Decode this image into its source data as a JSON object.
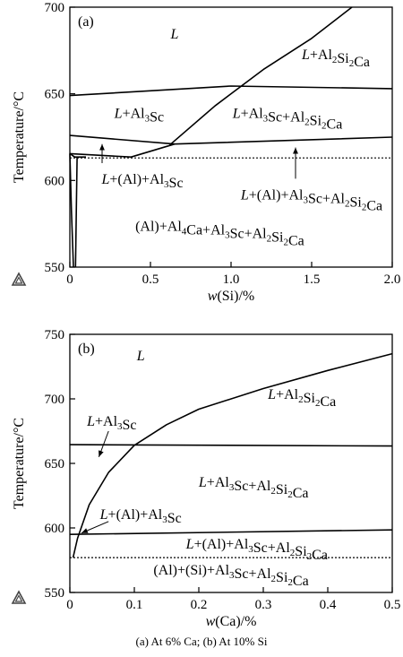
{
  "caption": "(a) At 6% Ca; (b) At 10% Si",
  "chart_data": [
    {
      "type": "line",
      "panel_label": "(a)",
      "xlabel": "w(Si)/%",
      "ylabel": "Temperature/°C",
      "xlim": [
        0,
        2.0
      ],
      "ylim": [
        550,
        700
      ],
      "xticks": [
        "0",
        "0.5",
        "1.0",
        "1.5",
        "2.0"
      ],
      "yticks": [
        "550",
        "600",
        "650",
        "700"
      ],
      "lines": [
        {
          "style": "solid",
          "points": [
            [
              0,
              649
            ],
            [
              1.0,
              654.5
            ],
            [
              2.0,
              653
            ]
          ]
        },
        {
          "style": "solid",
          "points": [
            [
              0.62,
              620.5
            ],
            [
              0.9,
              643
            ],
            [
              1.2,
              664
            ],
            [
              1.5,
              682
            ],
            [
              1.75,
              700
            ]
          ]
        },
        {
          "style": "solid",
          "points": [
            [
              0,
              626
            ],
            [
              0.65,
              621
            ],
            [
              2.0,
              625
            ]
          ]
        },
        {
          "style": "solid",
          "points": [
            [
              0,
              615.5
            ],
            [
              0.38,
              613.5
            ],
            [
              0.65,
              621
            ]
          ]
        },
        {
          "style": "solid",
          "points": [
            [
              0,
              615.5
            ],
            [
              0.03,
              613.5
            ],
            [
              0.1,
              613.5
            ]
          ]
        },
        {
          "style": "solid",
          "points": [
            [
              0,
              615.5
            ],
            [
              0.01,
              582
            ],
            [
              0.022,
              550
            ]
          ]
        },
        {
          "style": "solid",
          "points": [
            [
              0.045,
              613.5
            ],
            [
              0.04,
              582
            ],
            [
              0.035,
              550
            ]
          ]
        },
        {
          "style": "dotted",
          "points": [
            [
              0,
              613
            ],
            [
              2.0,
              613
            ]
          ]
        }
      ],
      "arrows": [
        {
          "from": [
            0.2,
            610
          ],
          "to": [
            0.2,
            621
          ]
        },
        {
          "from": [
            1.4,
            601
          ],
          "to": [
            1.4,
            619
          ]
        }
      ],
      "regions": [
        {
          "parts": [
            [
              "i",
              "L"
            ]
          ],
          "at": [
            0.65,
            682
          ]
        },
        {
          "parts": [
            [
              "i",
              "L"
            ],
            [
              "n",
              "+Al"
            ],
            [
              "sub",
              "2"
            ],
            [
              "n",
              "Si"
            ],
            [
              "sub",
              "2"
            ],
            [
              "n",
              "Ca"
            ]
          ],
          "at": [
            1.65,
            670
          ]
        },
        {
          "parts": [
            [
              "i",
              "L"
            ],
            [
              "n",
              "+Al"
            ],
            [
              "sub",
              "3"
            ],
            [
              "n",
              "Sc"
            ]
          ],
          "at": [
            0.43,
            636
          ]
        },
        {
          "parts": [
            [
              "i",
              "L"
            ],
            [
              "n",
              "+Al"
            ],
            [
              "sub",
              "3"
            ],
            [
              "n",
              "Sc+Al"
            ],
            [
              "sub",
              "2"
            ],
            [
              "n",
              "Si"
            ],
            [
              "sub",
              "2"
            ],
            [
              "n",
              "Ca"
            ]
          ],
          "at": [
            1.35,
            636
          ]
        },
        {
          "parts": [
            [
              "i",
              "L"
            ],
            [
              "n",
              "+(Al)+Al"
            ],
            [
              "sub",
              "3"
            ],
            [
              "n",
              "Sc"
            ]
          ],
          "at": [
            0.45,
            598
          ]
        },
        {
          "parts": [
            [
              "i",
              "L"
            ],
            [
              "n",
              "+(Al)+Al"
            ],
            [
              "sub",
              "3"
            ],
            [
              "n",
              "Sc+Al"
            ],
            [
              "sub",
              "2"
            ],
            [
              "n",
              "Si"
            ],
            [
              "sub",
              "2"
            ],
            [
              "n",
              "Ca"
            ]
          ],
          "at": [
            1.5,
            589
          ]
        },
        {
          "parts": [
            [
              "n",
              "(Al)+Al"
            ],
            [
              "sub",
              "4"
            ],
            [
              "n",
              "Ca+Al"
            ],
            [
              "sub",
              "3"
            ],
            [
              "n",
              "Sc+Al"
            ],
            [
              "sub",
              "2"
            ],
            [
              "n",
              "Si"
            ],
            [
              "sub",
              "2"
            ],
            [
              "n",
              "Ca"
            ]
          ],
          "at": [
            0.93,
            571
          ]
        }
      ]
    },
    {
      "type": "line",
      "panel_label": "(b)",
      "xlabel": "w(Ca)/%",
      "ylabel": "Temperature/°C",
      "xlim": [
        0,
        0.5
      ],
      "ylim": [
        550,
        750
      ],
      "xticks": [
        "0",
        "0.1",
        "0.2",
        "0.3",
        "0.4",
        "0.5"
      ],
      "yticks": [
        "550",
        "600",
        "650",
        "700",
        "750"
      ],
      "lines": [
        {
          "style": "solid",
          "points": [
            [
              0.005,
              577
            ],
            [
              0.012,
              592
            ],
            [
              0.03,
              618
            ],
            [
              0.06,
              643
            ],
            [
              0.1,
              664
            ],
            [
              0.15,
              680
            ],
            [
              0.2,
              692
            ],
            [
              0.3,
              708
            ],
            [
              0.4,
              722
            ],
            [
              0.5,
              735
            ]
          ]
        },
        {
          "style": "solid",
          "points": [
            [
              0,
              664.5
            ],
            [
              0.5,
              663.5
            ]
          ]
        },
        {
          "style": "solid",
          "points": [
            [
              0,
              595
            ],
            [
              0.5,
              598.5
            ]
          ]
        },
        {
          "style": "dotted",
          "points": [
            [
              0,
              577
            ],
            [
              0.5,
              577
            ]
          ]
        }
      ],
      "arrows": [
        {
          "from": [
            0.06,
            675
          ],
          "to": [
            0.045,
            655
          ]
        },
        {
          "from": [
            0.06,
            605
          ],
          "to": [
            0.018,
            596
          ]
        }
      ],
      "regions": [
        {
          "parts": [
            [
              "i",
              "L"
            ]
          ],
          "at": [
            0.11,
            730
          ]
        },
        {
          "parts": [
            [
              "i",
              "L"
            ],
            [
              "n",
              "+Al"
            ],
            [
              "sub",
              "2"
            ],
            [
              "n",
              "Si"
            ],
            [
              "sub",
              "2"
            ],
            [
              "n",
              "Ca"
            ]
          ],
          "at": [
            0.36,
            700
          ]
        },
        {
          "parts": [
            [
              "i",
              "L"
            ],
            [
              "n",
              "+Al"
            ],
            [
              "sub",
              "3"
            ],
            [
              "n",
              "Sc"
            ]
          ],
          "at": [
            0.065,
            679
          ]
        },
        {
          "parts": [
            [
              "i",
              "L"
            ],
            [
              "n",
              "+Al"
            ],
            [
              "sub",
              "3"
            ],
            [
              "n",
              "Sc+Al"
            ],
            [
              "sub",
              "2"
            ],
            [
              "n",
              "Si"
            ],
            [
              "sub",
              "2"
            ],
            [
              "n",
              "Ca"
            ]
          ],
          "at": [
            0.285,
            632
          ]
        },
        {
          "parts": [
            [
              "i",
              "L"
            ],
            [
              "n",
              "+(Al)+Al"
            ],
            [
              "sub",
              "3"
            ],
            [
              "n",
              "Sc"
            ]
          ],
          "at": [
            0.11,
            607
          ]
        },
        {
          "parts": [
            [
              "i",
              "L"
            ],
            [
              "n",
              "+(Al)+Al"
            ],
            [
              "sub",
              "3"
            ],
            [
              "n",
              "Sc+Al"
            ],
            [
              "sub",
              "2"
            ],
            [
              "n",
              "Si"
            ],
            [
              "sub",
              "2"
            ],
            [
              "n",
              "Ca"
            ]
          ],
          "at": [
            0.29,
            584
          ]
        },
        {
          "parts": [
            [
              "n",
              "(Al)+(Si)+Al"
            ],
            [
              "sub",
              "3"
            ],
            [
              "n",
              "Sc+Al"
            ],
            [
              "sub",
              "2"
            ],
            [
              "n",
              "Si"
            ],
            [
              "sub",
              "2"
            ],
            [
              "n",
              "Ca"
            ]
          ],
          "at": [
            0.25,
            564
          ]
        }
      ]
    }
  ]
}
